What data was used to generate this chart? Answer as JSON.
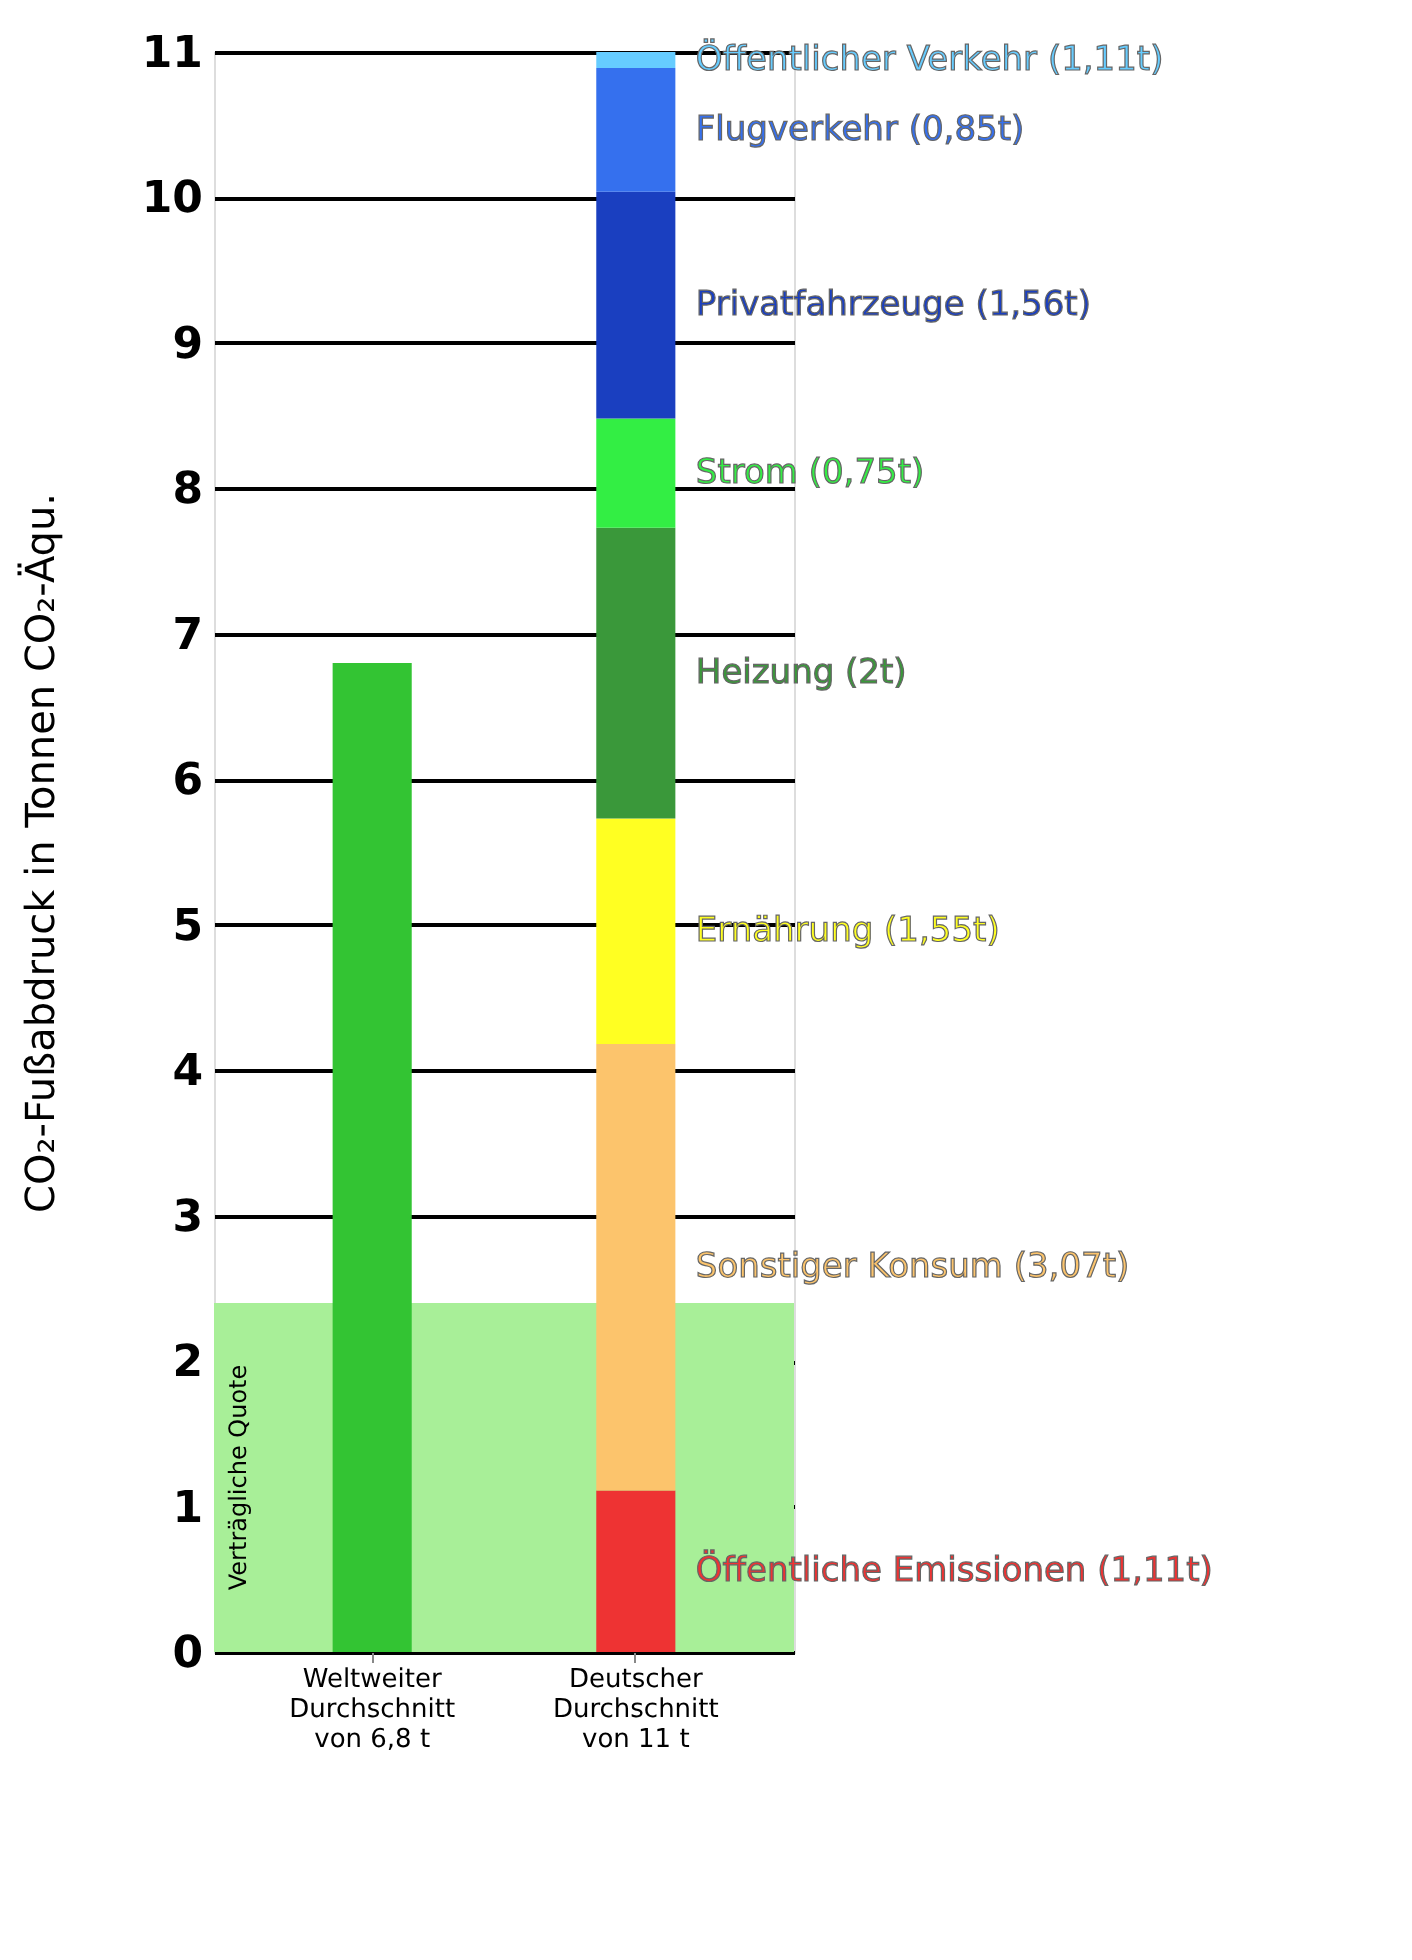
{
  "chart_data": {
    "type": "bar",
    "stacked": true,
    "ylabel": "CO₂-Fußabdruck in Tonnen CO₂-Äqu.",
    "categories": [
      "Weltweiter Durchschnitt von 6,8 t",
      "Deutscher Durchschnitt von 11 t"
    ],
    "series": [
      {
        "color": "#33c433",
        "values": [
          6.8,
          null
        ]
      },
      {
        "name": "Öffentliche Emissionen (1,11t)",
        "color": "#ee3333",
        "values": [
          null,
          1.11
        ]
      },
      {
        "name": "Sonstiger Konsum (3,07t)",
        "color": "#fcc46c",
        "values": [
          null,
          3.07
        ]
      },
      {
        "name": "Ernährung (1,55t)",
        "color": "#ffff22",
        "values": [
          null,
          1.55
        ]
      },
      {
        "name": "Heizung (2t)",
        "color": "#3a983a",
        "values": [
          null,
          2
        ]
      },
      {
        "name": "Strom (0,75t)",
        "color": "#33ee44",
        "values": [
          null,
          0.75
        ]
      },
      {
        "name": "Privatfahrzeuge (1,56t)",
        "color": "#1a3fc0",
        "values": [
          null,
          1.56
        ]
      },
      {
        "name": "Flugverkehr (0,85t)",
        "color": "#3570ee",
        "values": [
          null,
          0.85
        ]
      },
      {
        "name": "Öffentlicher Verkehr (1,11t)",
        "color": "#66ccff",
        "values": [
          null,
          0.11
        ]
      }
    ],
    "ylim": [
      0,
      11
    ],
    "yticks": [
      0,
      1,
      2,
      3,
      4,
      5,
      6,
      7,
      8,
      9,
      10,
      11
    ],
    "grid": "y",
    "bands": [
      {
        "axis": "y",
        "from": 0,
        "to": 2.4,
        "label": "Verträgliche Quote",
        "color": "#a8ef98"
      }
    ]
  }
}
